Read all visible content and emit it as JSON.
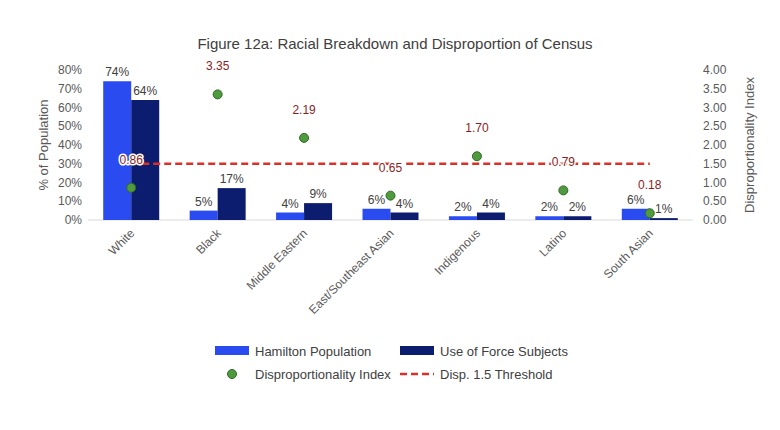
{
  "chart_data": {
    "type": "bar",
    "title": "Figure 12a: Racial Breakdown and Disproportion of Census",
    "categories": [
      "White",
      "Black",
      "Middle Eastern",
      "East/Southeast Asian",
      "Indigenous",
      "Latino",
      "South Asian"
    ],
    "y_label": "% of Population",
    "y2_label": "Disproportionality Index",
    "ylim": [
      0,
      80
    ],
    "yticks": [
      {
        "value": 0,
        "label": "0%"
      },
      {
        "value": 10,
        "label": "10%"
      },
      {
        "value": 20,
        "label": "20%"
      },
      {
        "value": 30,
        "label": "30%"
      },
      {
        "value": 40,
        "label": "40%"
      },
      {
        "value": 50,
        "label": "50%"
      },
      {
        "value": 60,
        "label": "60%"
      },
      {
        "value": 70,
        "label": "70%"
      },
      {
        "value": 80,
        "label": "80%"
      }
    ],
    "y2lim": [
      0,
      4
    ],
    "y2ticks": [
      {
        "value": 0,
        "label": "0.00"
      },
      {
        "value": 0.5,
        "label": "0.50"
      },
      {
        "value": 1,
        "label": "1.00"
      },
      {
        "value": 1.5,
        "label": "1.50"
      },
      {
        "value": 2,
        "label": "2.00"
      },
      {
        "value": 2.5,
        "label": "2.50"
      },
      {
        "value": 3,
        "label": "3.00"
      },
      {
        "value": 3.5,
        "label": "3.50"
      },
      {
        "value": 4,
        "label": "4.00"
      }
    ],
    "grid": false,
    "legend": "bottom",
    "series": [
      {
        "name": "Hamilton Population",
        "type": "bar",
        "color": "#2a4bf0",
        "values": [
          74,
          5,
          4,
          6,
          2,
          2,
          6
        ],
        "value_labels": [
          "74%",
          "5%",
          "4%",
          "6%",
          "2%",
          "2%",
          "6%"
        ],
        "data_labels": true
      },
      {
        "name": "Use of Force Subjects",
        "type": "bar",
        "color": "#0c1c6e",
        "values": [
          64,
          17,
          9,
          4,
          4,
          2,
          1
        ],
        "value_labels": [
          "64%",
          "17%",
          "9%",
          "4%",
          "4%",
          "2%",
          "1%"
        ],
        "data_labels": true
      },
      {
        "name": "Disproportionality Index",
        "type": "scatter",
        "axis": "y2",
        "color": "#4f9a3f",
        "marker": "circle",
        "values": [
          0.86,
          3.35,
          2.19,
          0.65,
          1.7,
          0.79,
          0.18
        ],
        "value_labels": [
          "0.86",
          "3.35",
          "2.19",
          "0.65",
          "1.70",
          "0.79",
          "0.18"
        ],
        "data_labels": true
      },
      {
        "name": "Disp. 1.5 Threshold",
        "type": "line",
        "axis": "y2",
        "color": "#d9302a",
        "line_style": "dashed",
        "values": [
          1.5,
          1.5,
          1.5,
          1.5,
          1.5,
          1.5,
          1.5
        ],
        "data_labels": false
      }
    ]
  }
}
